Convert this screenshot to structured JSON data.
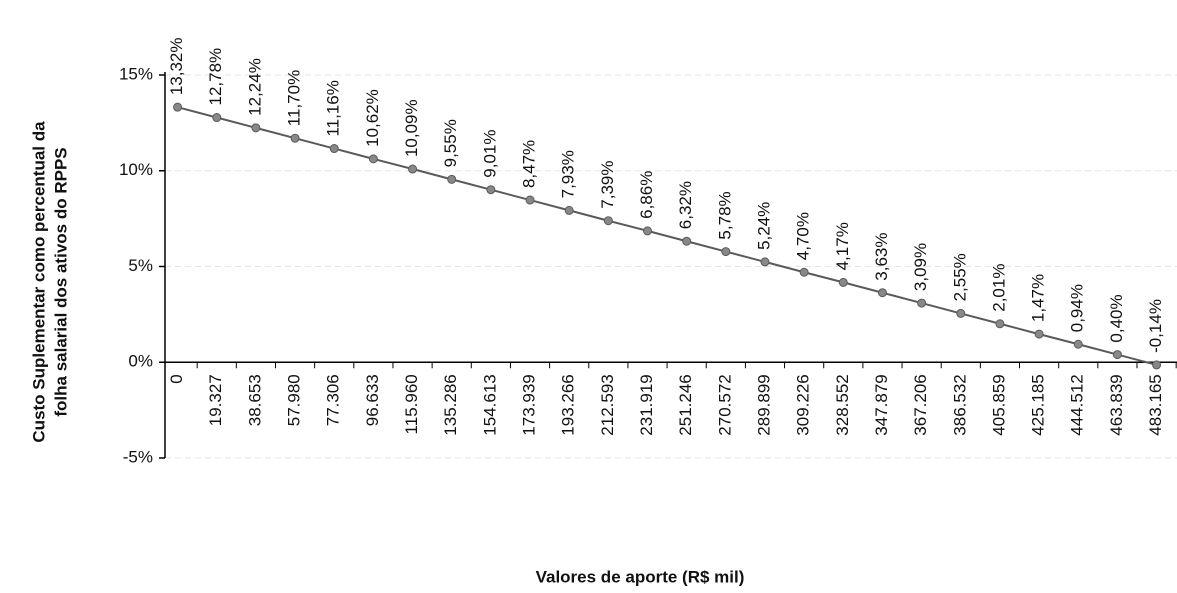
{
  "chart_data": {
    "type": "line",
    "y_label": [
      "Custo Suplementar como percentual da",
      "folha salarial dos ativos do RPPS"
    ],
    "x_label": "Valores de aporte (R$ mil)",
    "categories": [
      "0",
      "19.327",
      "38.653",
      "57.980",
      "77.306",
      "96.633",
      "115.960",
      "135.286",
      "154.613",
      "173.939",
      "193.266",
      "212.593",
      "231.919",
      "251.246",
      "270.572",
      "289.899",
      "309.226",
      "328.552",
      "347.879",
      "367.206",
      "386.532",
      "405.859",
      "425.185",
      "444.512",
      "463.839",
      "483.165"
    ],
    "series": [
      {
        "color": "#5a5a5a",
        "values": [
          13.32,
          12.78,
          12.24,
          11.7,
          11.16,
          10.62,
          10.09,
          9.55,
          9.01,
          8.47,
          7.93,
          7.39,
          6.86,
          6.32,
          5.78,
          5.24,
          4.7,
          4.17,
          3.63,
          3.09,
          2.55,
          2.01,
          1.47,
          0.94,
          0.4,
          -0.14
        ],
        "value_labels": [
          "13,32%",
          "12,78%",
          "12,24%",
          "11,70%",
          "11,16%",
          "10,62%",
          "10,09%",
          "9,55%",
          "9,01%",
          "8,47%",
          "7,93%",
          "7,39%",
          "6,86%",
          "6,32%",
          "5,78%",
          "5,24%",
          "4,70%",
          "4,17%",
          "3,63%",
          "3,09%",
          "2,55%",
          "2,01%",
          "1,47%",
          "0,94%",
          "0,40%",
          "-0,14%"
        ]
      }
    ],
    "ylim": [
      -5,
      15
    ],
    "yticks": [
      {
        "value": -5,
        "label": "-5%"
      },
      {
        "value": 0,
        "label": "0%"
      },
      {
        "value": 5,
        "label": "5%"
      },
      {
        "value": 10,
        "label": "10%"
      },
      {
        "value": 15,
        "label": "15%"
      }
    ],
    "grid": true
  }
}
